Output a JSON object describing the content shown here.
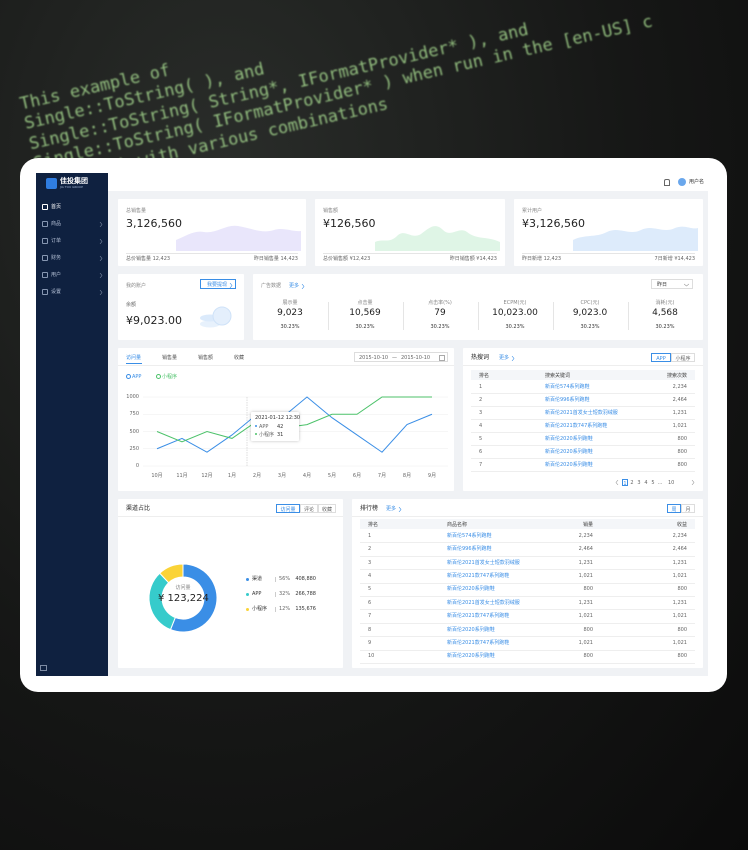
{
  "background_code": [
    "This example of",
    "Single::ToString( ), and",
    "Single::ToString( String*, IFormatProvider* ), and",
    "Single::ToString( IFormatProvider* ) when run in the [en-US] c",
    "String* ) with various combinations"
  ],
  "sidebar": {
    "logo": "佳投集团",
    "logo_sub": "JIA TOU GROUP",
    "menu": [
      "首页",
      "商品",
      "订单",
      "财务",
      "用户",
      "设置"
    ]
  },
  "header": {
    "user": "用户名"
  },
  "stats": [
    {
      "label": "总销售量",
      "value": "3,126,560",
      "footer": [
        "总价销售量 12,423",
        "昨日销售量 14,423"
      ]
    },
    {
      "label": "销售额",
      "value": "¥126,560",
      "footer": [
        "总价销售额 ¥12,423",
        "昨日销售额 ¥14,423"
      ]
    },
    {
      "label": "累计用户",
      "value": "¥3,126,560",
      "footer": [
        "昨日新增 12,423",
        "7日新增 ¥14,423"
      ]
    }
  ],
  "account": {
    "title": "我的账户",
    "button": "我要提现",
    "balance_label": "余额",
    "balance": "¥9,023.00"
  },
  "ads": {
    "title": "广告数据",
    "more": "更多",
    "period": "昨日",
    "metrics": [
      {
        "label": "展示量",
        "value": "9,023",
        "change": "30.23%"
      },
      {
        "label": "点击量",
        "value": "10,569",
        "change": "30.23%"
      },
      {
        "label": "点击率(%)",
        "value": "79",
        "change": "30.23%"
      },
      {
        "label": "ECPM(元)",
        "value": "10,023.00",
        "change": "30.23%"
      },
      {
        "label": "CPC(元)",
        "value": "9,023.0",
        "change": "30.23%"
      },
      {
        "label": "消耗(元)",
        "value": "4,568",
        "change": "30.23%"
      }
    ]
  },
  "line_chart": {
    "type": "line",
    "tabs": [
      "访问量",
      "销售量",
      "销售额",
      "收藏"
    ],
    "date_from": "2015-10-10",
    "date_sep": "—",
    "date_to": "2015-10-10",
    "categories": [
      "10月",
      "11月",
      "12月",
      "1月",
      "2月",
      "3月",
      "4月",
      "5月",
      "6月",
      "7月",
      "8月",
      "9月"
    ],
    "series": [
      {
        "name": "APP",
        "color": "#3a8ee6",
        "values": [
          250,
          400,
          200,
          450,
          750,
          700,
          1000,
          700,
          450,
          200,
          600,
          750
        ]
      },
      {
        "name": "小程序",
        "color": "#4cc26a",
        "values": [
          500,
          350,
          500,
          400,
          650,
          550,
          600,
          750,
          750,
          1000,
          1000,
          1000
        ]
      }
    ],
    "ylim": [
      0,
      1000
    ],
    "yticks": [
      0,
      250,
      500,
      750,
      1000
    ],
    "grid": true,
    "tooltip": {
      "title": "2021-01-12 12:30",
      "rows": [
        {
          "label": "APP",
          "value": "42"
        },
        {
          "label": "小程序",
          "value": "31"
        }
      ]
    }
  },
  "hot_search": {
    "title": "热搜词",
    "more": "更多",
    "tabs": [
      "APP",
      "小程序"
    ],
    "columns": [
      "排名",
      "搜索关键词",
      "搜索次数"
    ],
    "rows": [
      [
        "1",
        "新百伦574系列跑鞋",
        "2,234"
      ],
      [
        "2",
        "新百伦996系列跑鞋",
        "2,464"
      ],
      [
        "3",
        "新百伦2021首发女士短款羽绒服",
        "1,231"
      ],
      [
        "4",
        "新百伦2021款747系列跑鞋",
        "1,021"
      ],
      [
        "5",
        "新百伦2020系列跑鞋",
        "800"
      ],
      [
        "6",
        "新百伦2020系列跑鞋",
        "800"
      ],
      [
        "7",
        "新百伦2020系列跑鞋",
        "800"
      ]
    ],
    "pagination": [
      "1",
      "2",
      "3",
      "4",
      "5",
      "...",
      "10"
    ]
  },
  "channel": {
    "title": "渠道占比",
    "tabs": [
      "访问量",
      "评论",
      "收藏"
    ],
    "center_label": "访问量",
    "center_value": "¥ 123,224",
    "items": [
      {
        "name": "渠道",
        "share": 56,
        "share_label": "56%",
        "value": "408,880",
        "color": "#3a8ee6"
      },
      {
        "name": "APP",
        "share": 32,
        "share_label": "32%",
        "value": "266,788",
        "color": "#36cbcb"
      },
      {
        "name": "小程序",
        "share": 12,
        "share_label": "12%",
        "value": "135,676",
        "color": "#fad337"
      }
    ]
  },
  "ranking": {
    "title": "排行榜",
    "more": "更多",
    "tabs": [
      "周",
      "月"
    ],
    "columns": [
      "排名",
      "商品名称",
      "销量",
      "收益"
    ],
    "rows": [
      [
        "1",
        "新百伦574系列跑鞋",
        "2,234",
        "2,234"
      ],
      [
        "2",
        "新百伦996系列跑鞋",
        "2,464",
        "2,464"
      ],
      [
        "3",
        "新百伦2021首发女士短款羽绒服",
        "1,231",
        "1,231"
      ],
      [
        "4",
        "新百伦2021款747系列跑鞋",
        "1,021",
        "1,021"
      ],
      [
        "5",
        "新百伦2020系列跑鞋",
        "800",
        "800"
      ],
      [
        "6",
        "新百伦2021首发女士短款羽绒服",
        "1,231",
        "1,231"
      ],
      [
        "7",
        "新百伦2021款747系列跑鞋",
        "1,021",
        "1,021"
      ],
      [
        "8",
        "新百伦2020系列跑鞋",
        "800",
        "800"
      ],
      [
        "9",
        "新百伦2021款747系列跑鞋",
        "1,021",
        "1,021"
      ],
      [
        "10",
        "新百伦2020系列跑鞋",
        "800",
        "800"
      ]
    ]
  }
}
